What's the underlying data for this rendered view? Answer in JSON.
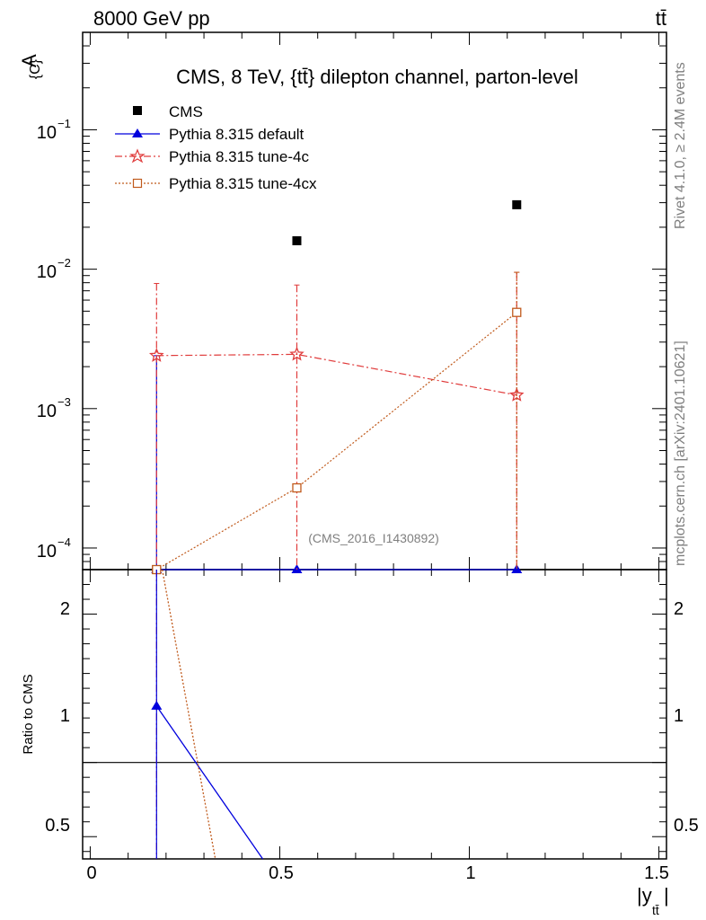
{
  "header": {
    "left": "8000 GeV pp",
    "right": "tt̄"
  },
  "side_text": {
    "upper": "Rivet 4.1.0, ≥ 2.4M events",
    "lower": "mcplots.cern.ch [arXiv:2401.10621]"
  },
  "chart_data": {
    "type": "scatter",
    "title": "CMS, 8 TeV, {tt̄} dilepton channel, parton-level",
    "analysis_tag": "(CMS_2016_I1430892)",
    "ylabel": "A_{C}",
    "ylabel_main": "A",
    "ylabel_sub": "{C}",
    "xlabel": "|y_tt̄|",
    "xlabel_main": "|y",
    "xlabel_sub": "tt̄",
    "xlabel_end": "|",
    "xlim": [
      -0.02,
      1.52
    ],
    "ylim": [
      7e-05,
      0.5
    ],
    "yscale": "log",
    "x_ticks": [
      "0",
      "0.5",
      "1",
      "1.5"
    ],
    "y_ticks": [
      {
        "mantissa": "10",
        "exp": "−1"
      },
      {
        "mantissa": "10",
        "exp": "−2"
      },
      {
        "mantissa": "10",
        "exp": "−3"
      },
      {
        "mantissa": "10",
        "exp": "−4"
      }
    ],
    "x": [
      0.175,
      0.545,
      1.125
    ],
    "legend": [
      {
        "name": "CMS"
      },
      {
        "name": "Pythia 8.315 default"
      },
      {
        "name": "Pythia 8.315 tune-4c"
      },
      {
        "name": "Pythia 8.315 tune-4cx"
      }
    ],
    "series": [
      {
        "name": "CMS",
        "color": "#000000",
        "marker": "square",
        "values": [
          7e-05,
          0.016,
          0.029
        ]
      },
      {
        "name": "Pythia 8.315 default",
        "color": "#0000dd",
        "marker": "triangle",
        "values": [
          7e-05,
          7e-05,
          7e-05
        ],
        "err_high": [
          0.0024,
          null,
          null
        ]
      },
      {
        "name": "Pythia 8.315 tune-4c",
        "color": "#e03c3c",
        "marker": "star",
        "values": [
          0.0024,
          0.00245,
          0.00125
        ],
        "err_high": [
          0.0079,
          0.0077,
          0.0095
        ]
      },
      {
        "name": "Pythia 8.315 tune-4cx",
        "color": "#c05a1c",
        "marker": "open-square",
        "values": [
          7e-05,
          0.00027,
          0.0049
        ],
        "err_high": [
          null,
          null,
          0.0095
        ]
      }
    ],
    "ratio": {
      "ylabel": "Ratio to CMS",
      "ylim": [
        0.35,
        2.3
      ],
      "y_ticks": [
        "0.5",
        "1",
        "2"
      ],
      "reference": 1,
      "series": [
        {
          "name": "Pythia 8.315 default",
          "color": "#0000dd",
          "x": [
            0.175,
            0.455
          ],
          "values": [
            1.38,
            0.35
          ]
        },
        {
          "name": "Pythia 8.315 tune-4cx",
          "color": "#c05a1c",
          "x": [
            0.19,
            0.33
          ],
          "values": [
            2.3,
            0.35
          ]
        }
      ]
    }
  }
}
